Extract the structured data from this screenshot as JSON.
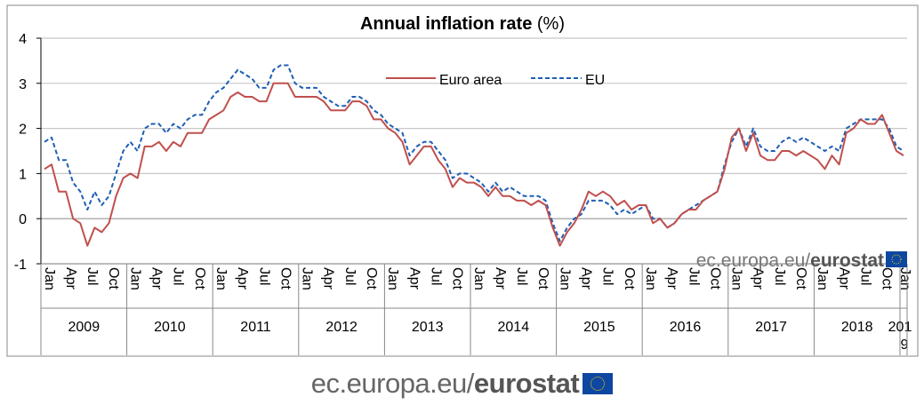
{
  "chart_data": {
    "type": "line",
    "title_bold": "Annual inflation rate",
    "title_unit": "(%)",
    "xlabel": "",
    "ylabel": "",
    "ylim": [
      -1,
      4
    ],
    "y_ticks": [
      "-1",
      "0",
      "1",
      "2",
      "3",
      "4"
    ],
    "grid": true,
    "legend_placement": "top-center",
    "month_labels": [
      "Jan",
      "Apr",
      "Jul",
      "Oct"
    ],
    "years": [
      "2009",
      "2010",
      "2011",
      "2012",
      "2013",
      "2014",
      "2015",
      "2016",
      "2017",
      "2018",
      "2019"
    ],
    "last_month_label": "Jan",
    "x_start": "Jan 2009",
    "x_end": "Jan 2019",
    "series": [
      {
        "name": "Euro area",
        "color": "#c0504d",
        "style": "solid",
        "values": [
          1.1,
          1.2,
          0.6,
          0.6,
          0.0,
          -0.1,
          -0.6,
          -0.2,
          -0.3,
          -0.1,
          0.5,
          0.9,
          1.0,
          0.9,
          1.6,
          1.6,
          1.7,
          1.5,
          1.7,
          1.6,
          1.9,
          1.9,
          1.9,
          2.2,
          2.3,
          2.4,
          2.7,
          2.8,
          2.7,
          2.7,
          2.6,
          2.6,
          3.0,
          3.0,
          3.0,
          2.7,
          2.7,
          2.7,
          2.7,
          2.6,
          2.4,
          2.4,
          2.4,
          2.6,
          2.6,
          2.5,
          2.2,
          2.2,
          2.0,
          1.9,
          1.7,
          1.2,
          1.4,
          1.6,
          1.6,
          1.3,
          1.1,
          0.7,
          0.9,
          0.8,
          0.8,
          0.7,
          0.5,
          0.7,
          0.5,
          0.5,
          0.4,
          0.4,
          0.3,
          0.4,
          0.3,
          -0.2,
          -0.6,
          -0.3,
          -0.1,
          0.2,
          0.6,
          0.5,
          0.6,
          0.5,
          0.3,
          0.4,
          0.2,
          0.3,
          0.3,
          -0.1,
          0.0,
          -0.2,
          -0.1,
          0.1,
          0.2,
          0.2,
          0.4,
          0.5,
          0.6,
          1.1,
          1.8,
          2.0,
          1.5,
          1.9,
          1.4,
          1.3,
          1.3,
          1.5,
          1.5,
          1.4,
          1.5,
          1.4,
          1.3,
          1.1,
          1.4,
          1.2,
          1.9,
          2.0,
          2.2,
          2.1,
          2.1,
          2.3,
          1.9,
          1.5,
          1.4
        ]
      },
      {
        "name": "EU",
        "color": "#1f5fb4",
        "style": "dashed",
        "values": [
          1.7,
          1.8,
          1.3,
          1.3,
          0.8,
          0.6,
          0.2,
          0.6,
          0.3,
          0.5,
          1.0,
          1.5,
          1.7,
          1.5,
          2.0,
          2.1,
          2.1,
          1.9,
          2.1,
          2.0,
          2.2,
          2.3,
          2.3,
          2.6,
          2.8,
          2.9,
          3.1,
          3.3,
          3.2,
          3.1,
          2.9,
          2.9,
          3.3,
          3.4,
          3.4,
          3.0,
          2.9,
          2.9,
          2.9,
          2.7,
          2.6,
          2.5,
          2.5,
          2.7,
          2.7,
          2.6,
          2.4,
          2.3,
          2.1,
          2.0,
          1.9,
          1.4,
          1.6,
          1.7,
          1.7,
          1.5,
          1.3,
          0.9,
          1.0,
          1.0,
          0.9,
          0.8,
          0.6,
          0.8,
          0.6,
          0.7,
          0.6,
          0.5,
          0.5,
          0.5,
          0.4,
          -0.1,
          -0.5,
          -0.2,
          0.0,
          0.1,
          0.4,
          0.4,
          0.4,
          0.3,
          0.1,
          0.2,
          0.1,
          0.2,
          0.3,
          0.0,
          0.0,
          -0.2,
          -0.1,
          0.1,
          0.2,
          0.3,
          0.4,
          0.5,
          0.6,
          1.2,
          1.7,
          2.0,
          1.6,
          2.0,
          1.6,
          1.5,
          1.5,
          1.7,
          1.8,
          1.7,
          1.8,
          1.7,
          1.6,
          1.5,
          1.6,
          1.5,
          2.0,
          2.1,
          2.2,
          2.2,
          2.2,
          2.2,
          2.0,
          1.6,
          1.5
        ]
      }
    ]
  },
  "source_inner": {
    "plain": "ec.europa.eu/",
    "bold": "eurostat"
  },
  "footer": {
    "plain": "ec.europa.eu/",
    "bold": "eurostat"
  }
}
